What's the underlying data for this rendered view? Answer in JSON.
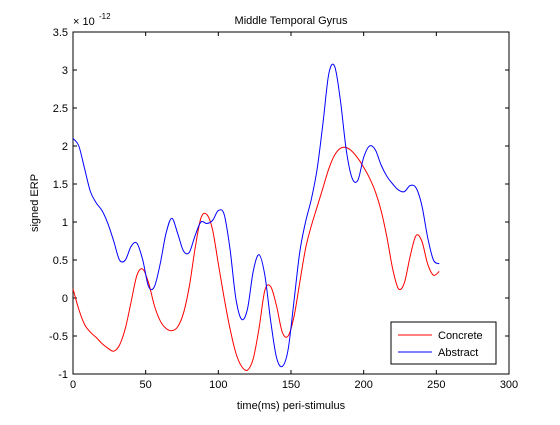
{
  "chart_data": {
    "type": "line",
    "title": "Middle Temporal Gyrus",
    "xlabel": "time(ms) peri-stimulus",
    "ylabel": "signed ERP",
    "y_exponent_label": "× 10",
    "y_exponent_power": "-12",
    "xlim": [
      0,
      300
    ],
    "ylim": [
      -1,
      3.5
    ],
    "xticks": [
      0,
      50,
      100,
      150,
      200,
      250,
      300
    ],
    "xtick_labels": [
      "0",
      "50",
      "100",
      "150",
      "200",
      "250",
      "300"
    ],
    "yticks": [
      -1,
      -0.5,
      0,
      0.5,
      1,
      1.5,
      2,
      2.5,
      3,
      3.5
    ],
    "ytick_labels": [
      "-1",
      "-0.5",
      "0",
      "0.5",
      "1",
      "1.5",
      "2",
      "2.5",
      "3",
      "3.5"
    ],
    "grid": false,
    "legend_position": "bottom-right",
    "series": [
      {
        "name": "Concrete",
        "color": "#ff0000",
        "x": [
          0,
          4,
          8,
          12,
          16,
          20,
          24,
          28,
          32,
          36,
          40,
          44,
          48,
          52,
          56,
          60,
          64,
          68,
          72,
          76,
          80,
          84,
          88,
          92,
          96,
          100,
          104,
          108,
          112,
          116,
          120,
          124,
          128,
          132,
          136,
          140,
          144,
          148,
          152,
          156,
          160,
          164,
          168,
          172,
          176,
          180,
          184,
          188,
          192,
          196,
          200,
          204,
          208,
          212,
          216,
          220,
          224,
          228,
          232,
          236,
          240,
          244,
          248,
          252
        ],
        "y": [
          0.12,
          -0.15,
          -0.35,
          -0.45,
          -0.52,
          -0.6,
          -0.66,
          -0.7,
          -0.62,
          -0.4,
          -0.05,
          0.3,
          0.38,
          0.2,
          -0.1,
          -0.3,
          -0.4,
          -0.43,
          -0.38,
          -0.2,
          0.15,
          0.65,
          1.05,
          1.1,
          0.9,
          0.45,
          0.0,
          -0.4,
          -0.72,
          -0.9,
          -0.95,
          -0.8,
          -0.4,
          0.1,
          0.15,
          -0.1,
          -0.45,
          -0.5,
          -0.25,
          0.2,
          0.65,
          0.95,
          1.2,
          1.45,
          1.7,
          1.88,
          1.97,
          1.98,
          1.93,
          1.84,
          1.72,
          1.58,
          1.4,
          1.15,
          0.8,
          0.38,
          0.12,
          0.2,
          0.55,
          0.82,
          0.75,
          0.45,
          0.3,
          0.35
        ]
      },
      {
        "name": "Abstract",
        "color": "#0000ff",
        "x": [
          0,
          4,
          8,
          12,
          16,
          20,
          24,
          28,
          32,
          36,
          40,
          44,
          48,
          52,
          56,
          60,
          64,
          68,
          72,
          76,
          80,
          84,
          88,
          92,
          96,
          100,
          104,
          108,
          112,
          116,
          120,
          124,
          128,
          132,
          136,
          140,
          144,
          148,
          152,
          156,
          160,
          164,
          168,
          172,
          176,
          180,
          184,
          188,
          192,
          196,
          200,
          204,
          208,
          212,
          216,
          220,
          224,
          228,
          232,
          236,
          240,
          244,
          248,
          252
        ],
        "y": [
          2.1,
          2.0,
          1.7,
          1.4,
          1.25,
          1.15,
          0.98,
          0.75,
          0.5,
          0.5,
          0.68,
          0.72,
          0.5,
          0.15,
          0.15,
          0.45,
          0.85,
          1.05,
          0.85,
          0.62,
          0.6,
          0.82,
          1.0,
          0.98,
          1.02,
          1.15,
          1.1,
          0.65,
          0.0,
          -0.28,
          -0.15,
          0.35,
          0.57,
          0.3,
          -0.3,
          -0.78,
          -0.9,
          -0.68,
          -0.05,
          0.6,
          1.0,
          1.3,
          1.7,
          2.3,
          2.95,
          3.05,
          2.6,
          1.95,
          1.58,
          1.55,
          1.85,
          2.0,
          1.95,
          1.75,
          1.6,
          1.5,
          1.42,
          1.4,
          1.48,
          1.45,
          1.22,
          0.8,
          0.5,
          0.45
        ]
      }
    ]
  }
}
